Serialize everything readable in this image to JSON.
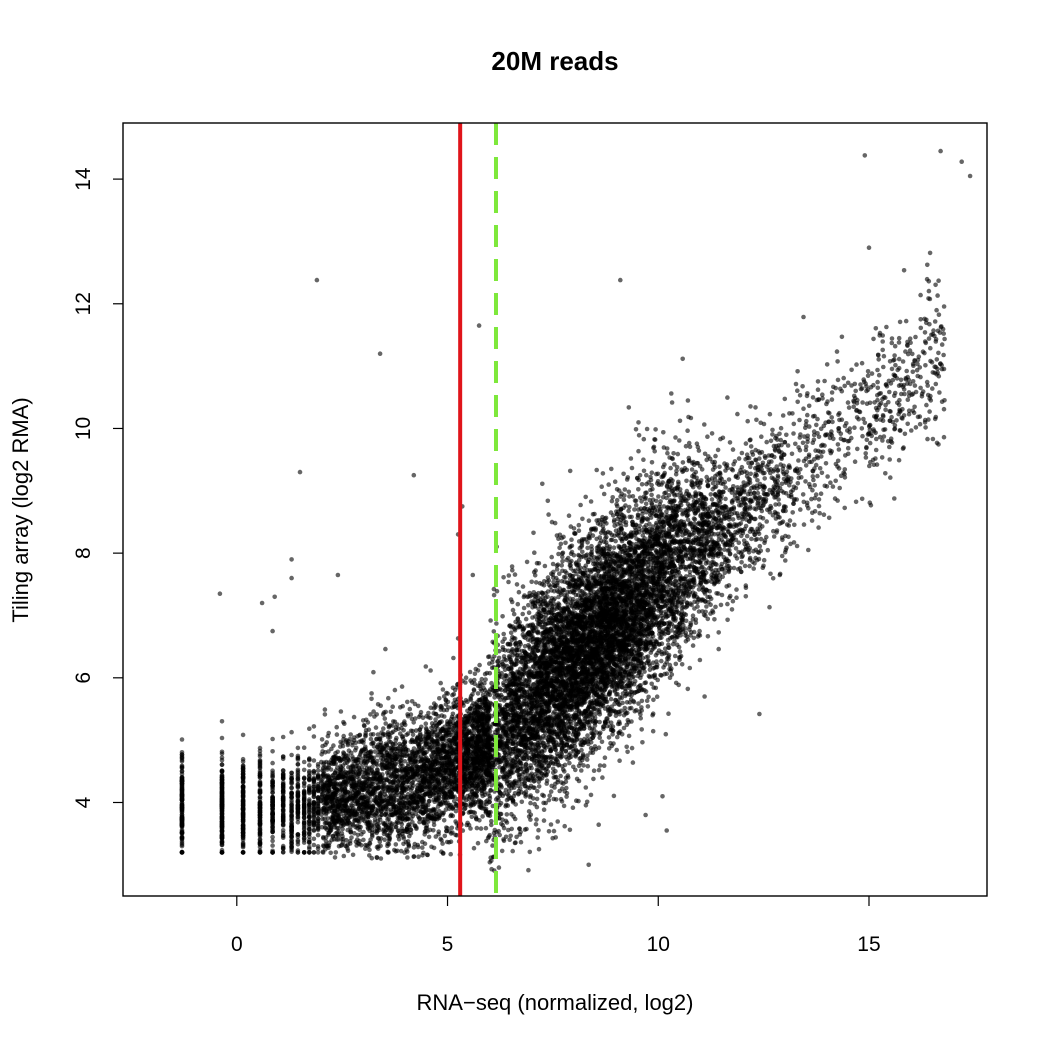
{
  "chart_data": {
    "type": "scatter",
    "title": "20M reads",
    "xlabel": "RNA−seq (normalized, log2)",
    "ylabel": "Tiling array (log2 RMA)",
    "xlim": [
      -2.7,
      17.8
    ],
    "ylim": [
      2.5,
      14.9
    ],
    "xticks": [
      0,
      5,
      10,
      15
    ],
    "yticks": [
      4,
      6,
      8,
      10,
      12,
      14
    ],
    "grid": false,
    "legend": "none",
    "vlines": [
      {
        "x": 5.3,
        "color": "#e0141a",
        "style": "solid"
      },
      {
        "x": 6.15,
        "color": "#7ee83b",
        "style": "dashed"
      }
    ],
    "point_color": "#000000",
    "approx_point_count": 14000,
    "outliers": [
      {
        "x": 1.9,
        "y": 12.38
      },
      {
        "x": 3.4,
        "y": 11.2
      },
      {
        "x": 1.5,
        "y": 9.3
      },
      {
        "x": 4.2,
        "y": 9.25
      },
      {
        "x": 1.3,
        "y": 7.9
      },
      {
        "x": 1.3,
        "y": 7.6
      },
      {
        "x": 0.9,
        "y": 7.3
      },
      {
        "x": 0.6,
        "y": 7.2
      },
      {
        "x": -0.4,
        "y": 7.35
      },
      {
        "x": 2.4,
        "y": 7.65
      },
      {
        "x": 0.85,
        "y": 6.75
      },
      {
        "x": 5.25,
        "y": 8.3
      },
      {
        "x": 5.6,
        "y": 7.65
      },
      {
        "x": 5.75,
        "y": 11.65
      },
      {
        "x": 5.35,
        "y": 8.75
      },
      {
        "x": 12.4,
        "y": 5.42
      },
      {
        "x": 10.2,
        "y": 3.55
      },
      {
        "x": 10.1,
        "y": 4.1
      },
      {
        "x": 8.35,
        "y": 3.0
      },
      {
        "x": 6.6,
        "y": 3.35
      },
      {
        "x": 9.1,
        "y": 12.38
      },
      {
        "x": 15.0,
        "y": 12.9
      },
      {
        "x": 14.9,
        "y": 14.38
      },
      {
        "x": 16.7,
        "y": 14.45
      },
      {
        "x": 17.2,
        "y": 14.28
      },
      {
        "x": 17.4,
        "y": 14.05
      },
      {
        "x": 11.1,
        "y": 5.7
      },
      {
        "x": 9.7,
        "y": 3.8
      },
      {
        "x": 7.1,
        "y": 3.65
      },
      {
        "x": 3.6,
        "y": 3.2
      }
    ]
  }
}
